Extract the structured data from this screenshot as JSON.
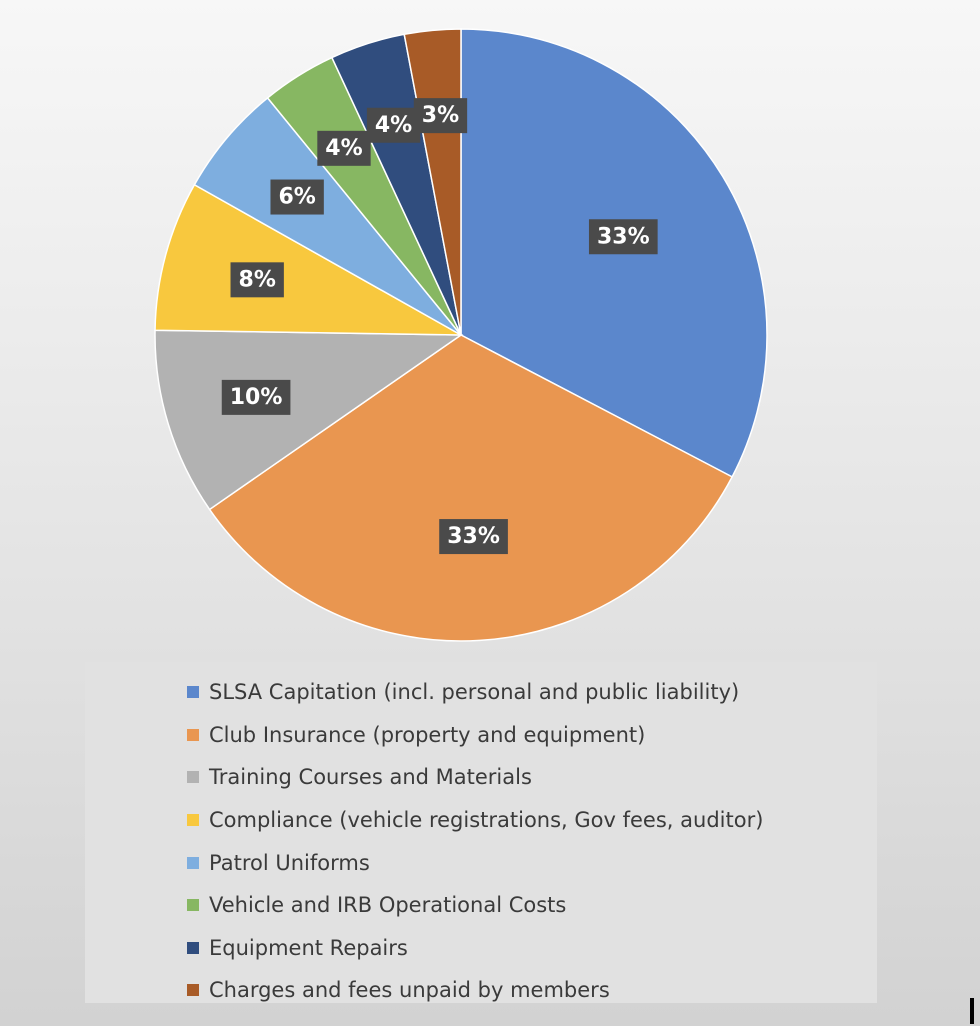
{
  "chart_data": {
    "type": "pie",
    "title": "",
    "start_angle_deg": 0,
    "direction": "clockwise",
    "grid": false,
    "legend_position": "bottom",
    "slices": [
      {
        "label": "SLSA Capitation (incl. personal and public liability)",
        "value": 33,
        "value_label": "33%",
        "color": "#5b87cc"
      },
      {
        "label": "Club Insurance (property and equipment)",
        "value": 33,
        "value_label": "33%",
        "color": "#e99650"
      },
      {
        "label": "Training Courses and Materials",
        "value": 10,
        "value_label": "10%",
        "color": "#b2b2b2"
      },
      {
        "label": "Compliance (vehicle registrations, Gov fees, auditor)",
        "value": 8,
        "value_label": "8%",
        "color": "#f8c83e"
      },
      {
        "label": "Patrol Uniforms",
        "value": 6,
        "value_label": "6%",
        "color": "#7eaedf"
      },
      {
        "label": "Vehicle and IRB Operational Costs",
        "value": 4,
        "value_label": "4%",
        "color": "#87b762"
      },
      {
        "label": "Equipment Repairs",
        "value": 4,
        "value_label": "4%",
        "color": "#304d7e"
      },
      {
        "label": "Charges and fees unpaid by members",
        "value": 3,
        "value_label": "3%",
        "color": "#a85b27"
      }
    ]
  }
}
